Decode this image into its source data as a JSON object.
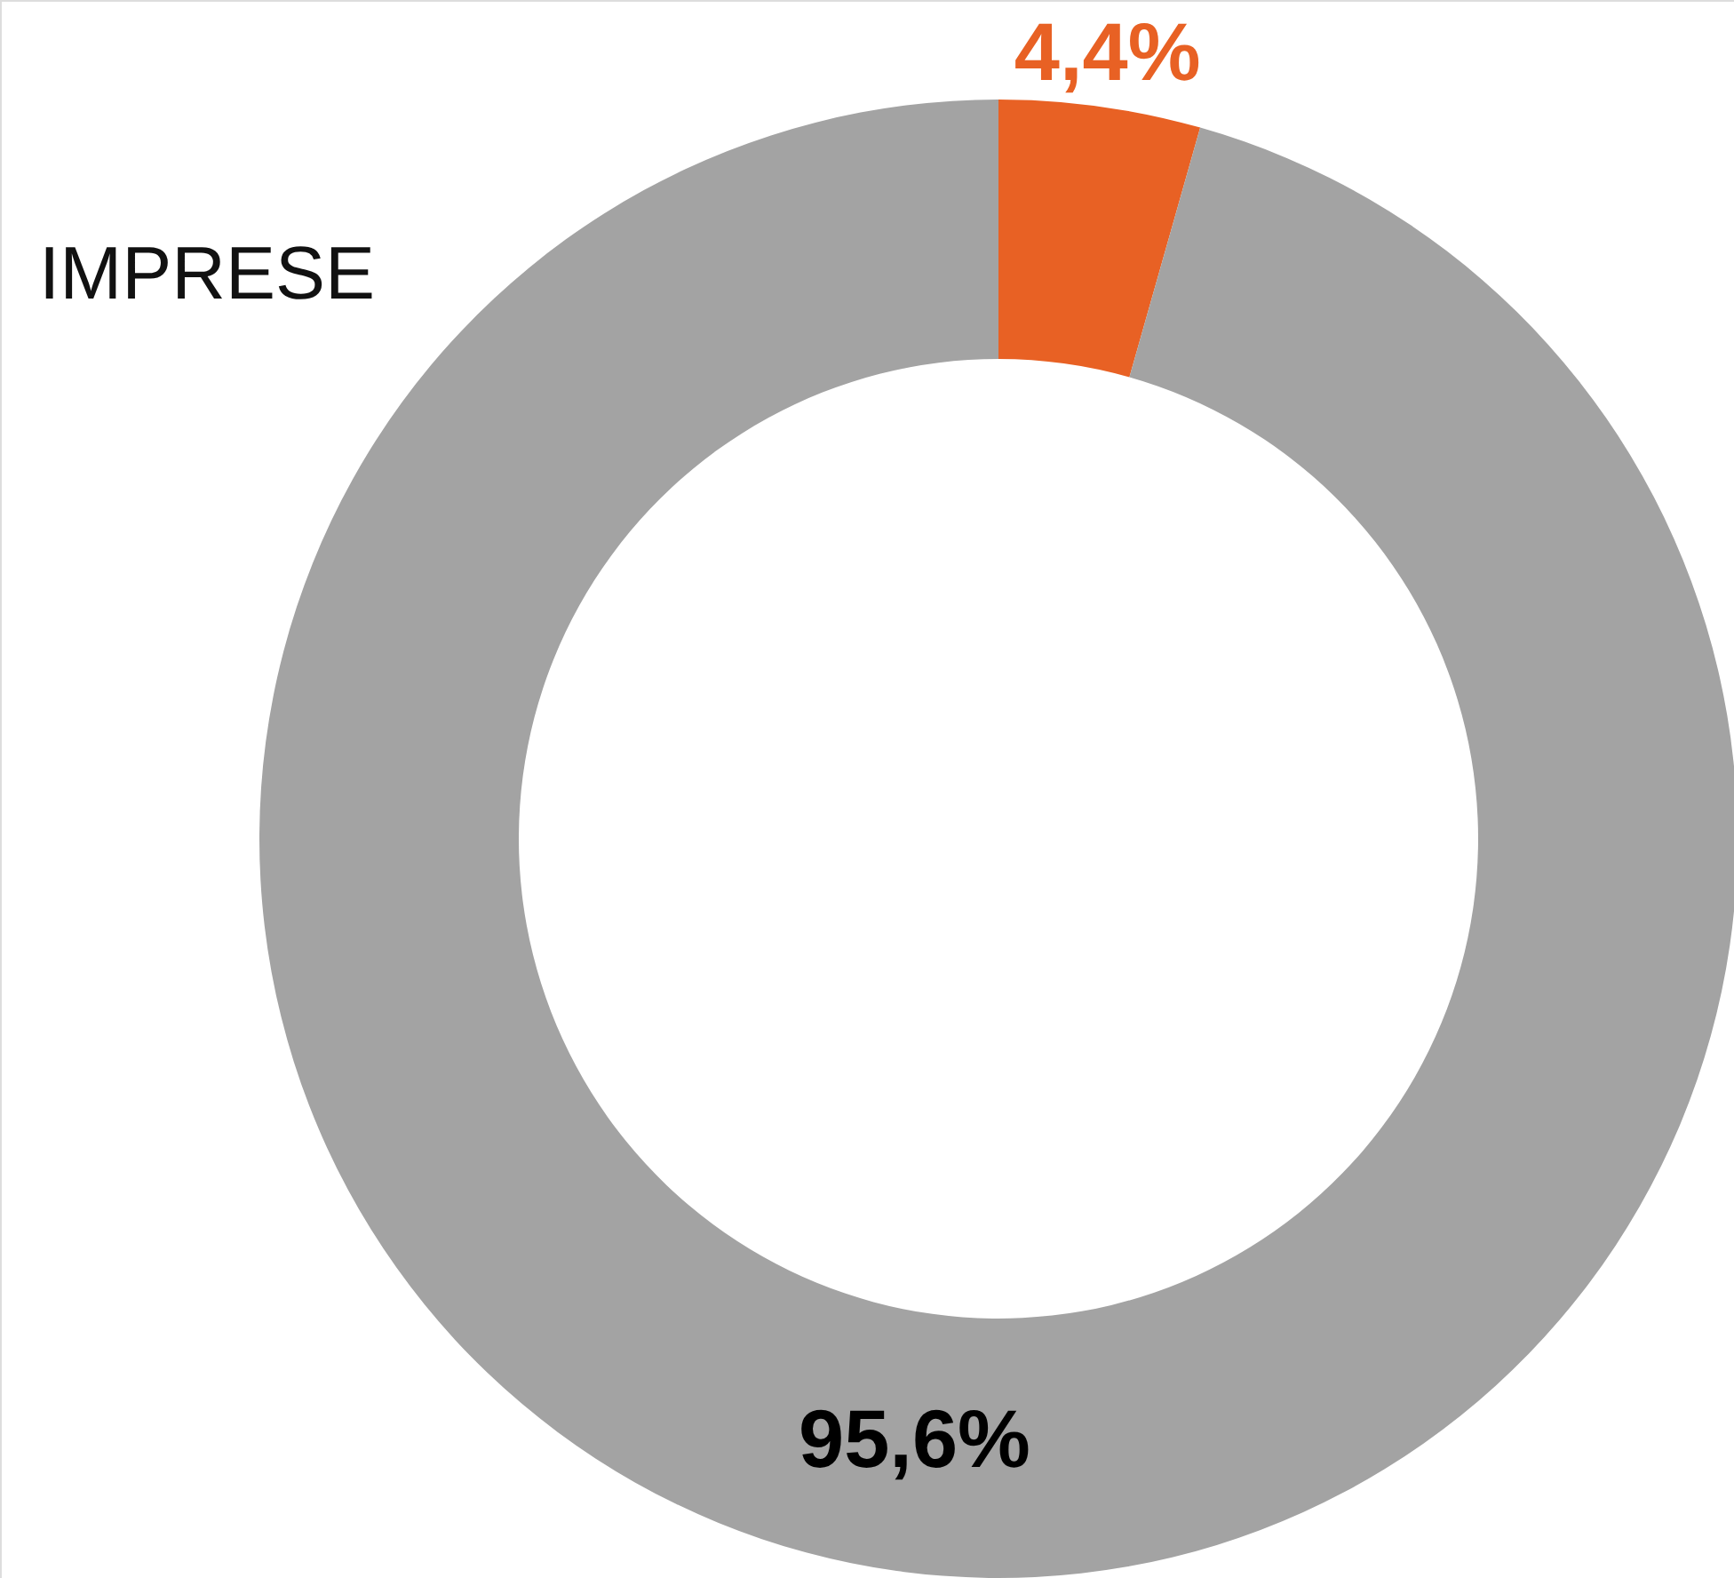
{
  "chart_data": {
    "type": "donut",
    "title": "IMPRESE",
    "categories": [
      null,
      null
    ],
    "values": [
      4.4,
      95.6
    ],
    "colors": [
      "#e86124",
      "#a3a3a3"
    ],
    "value_labels": [
      "4,4%",
      "95,6%"
    ]
  }
}
